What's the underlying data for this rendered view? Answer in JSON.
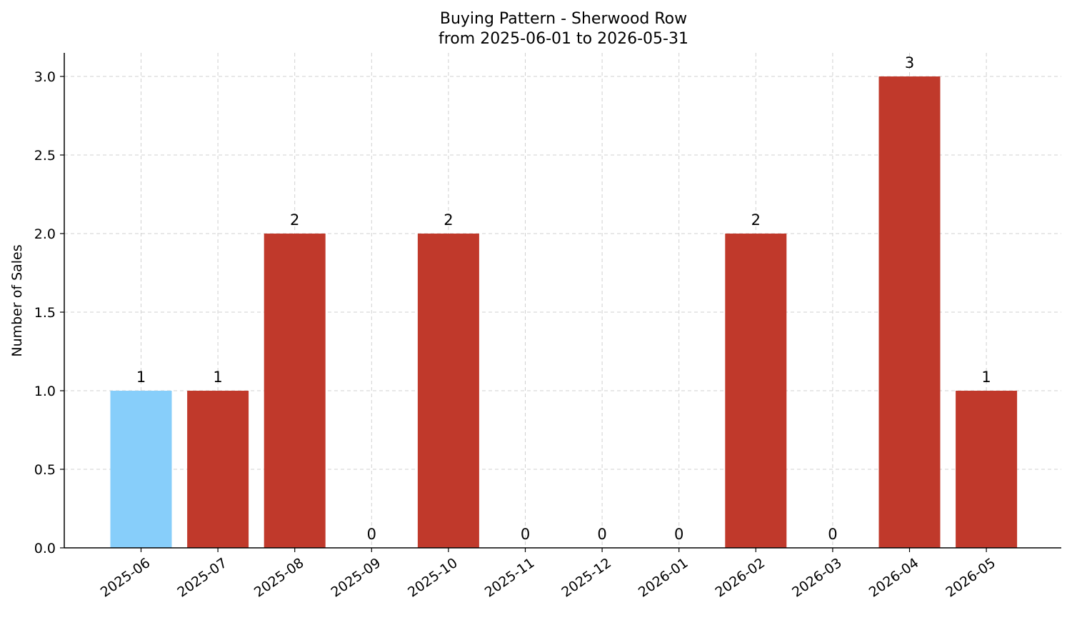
{
  "chart_data": {
    "type": "bar",
    "title": "Buying Pattern - Sherwood Row",
    "subtitle": "from 2025-06-01 to 2026-05-31",
    "xlabel": "",
    "ylabel": "Number of Sales",
    "categories": [
      "2025-06",
      "2025-07",
      "2025-08",
      "2025-09",
      "2025-10",
      "2025-11",
      "2025-12",
      "2026-01",
      "2026-02",
      "2026-03",
      "2026-04",
      "2026-05"
    ],
    "values": [
      1,
      1,
      2,
      0,
      2,
      0,
      0,
      0,
      2,
      0,
      3,
      1
    ],
    "data_labels": [
      "1",
      "1",
      "2",
      "0",
      "2",
      "0",
      "0",
      "0",
      "2",
      "0",
      "3",
      "1"
    ],
    "ylim": [
      0,
      3.15
    ],
    "y_ticks": [
      0,
      0.5,
      1.0,
      1.5,
      2.0,
      2.5,
      3.0
    ],
    "y_tick_labels": [
      "0.0",
      "0.5",
      "1.0",
      "1.5",
      "2.0",
      "2.5",
      "3.0"
    ],
    "grid": true,
    "colors": {
      "bar": "#c0392b",
      "highlight": "#87cefa"
    },
    "highlight_index": 0
  }
}
